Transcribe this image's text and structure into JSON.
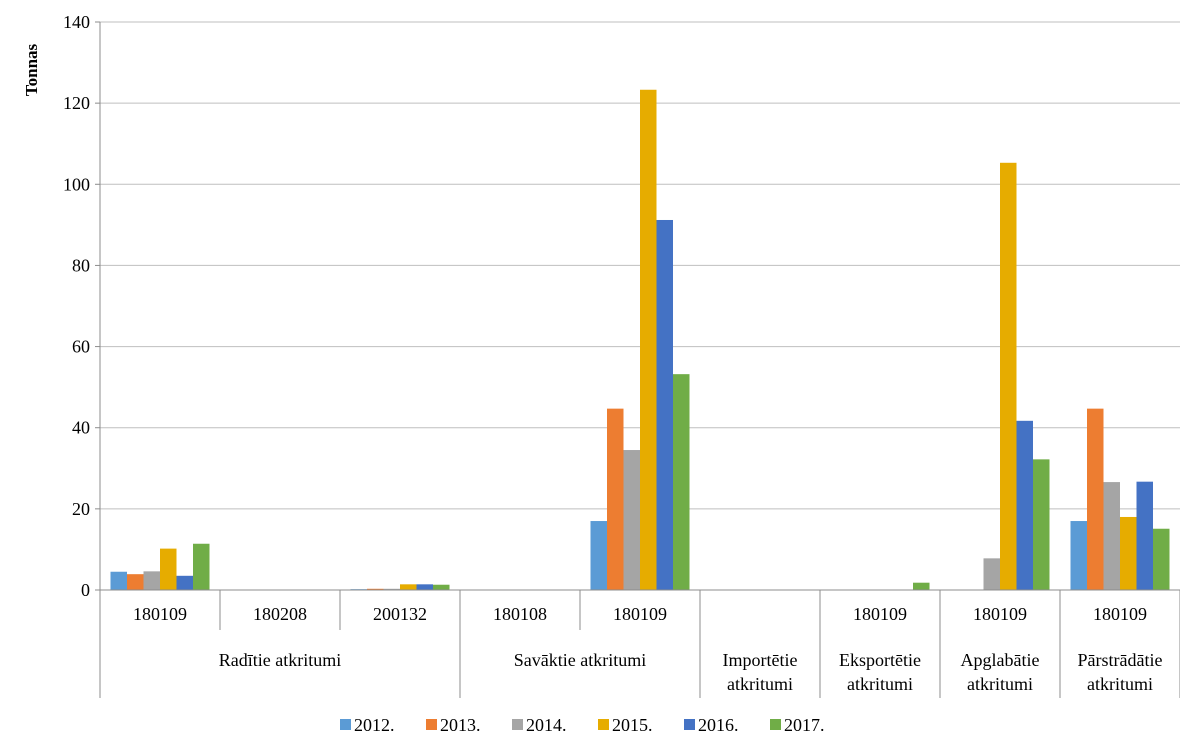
{
  "chart_data": {
    "type": "bar",
    "ylabel": "Tonnas",
    "ylim": [
      0,
      140
    ],
    "yticks": [
      0,
      20,
      40,
      60,
      80,
      100,
      120,
      140
    ],
    "grid": true,
    "legend_position": "bottom",
    "groups": [
      {
        "label": [
          "Radītie atkritumi"
        ],
        "categories": [
          "180109",
          "180208",
          "200132"
        ]
      },
      {
        "label": [
          "Savāktie atkritumi"
        ],
        "categories": [
          "180108",
          "180109"
        ]
      },
      {
        "label": [
          "Importētie",
          "atkritumi"
        ],
        "categories": [
          ""
        ]
      },
      {
        "label": [
          "Eksportētie",
          "atkritumi"
        ],
        "categories": [
          "180109"
        ]
      },
      {
        "label": [
          "Apglabātie",
          "atkritumi"
        ],
        "categories": [
          "180109"
        ]
      },
      {
        "label": [
          "Pārstrādātie",
          "atkritumi"
        ],
        "categories": [
          "180109"
        ]
      }
    ],
    "series": [
      {
        "name": "2012.",
        "color": "#5b9bd5",
        "values": [
          4.5,
          0,
          0.2,
          0,
          17,
          0,
          0,
          0,
          17
        ]
      },
      {
        "name": "2013.",
        "color": "#ed7d31",
        "values": [
          3.9,
          0,
          0.3,
          0,
          44.7,
          0,
          0,
          0,
          44.7
        ]
      },
      {
        "name": "2014.",
        "color": "#a5a5a5",
        "values": [
          4.6,
          0,
          0.3,
          0,
          34.5,
          0,
          0,
          7.8,
          26.6
        ]
      },
      {
        "name": "2015.",
        "color": "#e6ac00",
        "values": [
          10.2,
          0,
          1.4,
          0,
          123.3,
          0,
          0,
          105.3,
          18
        ]
      },
      {
        "name": "2016.",
        "color": "#4472c4",
        "values": [
          3.5,
          0,
          1.4,
          0,
          91.2,
          0,
          0,
          41.7,
          26.7
        ]
      },
      {
        "name": "2017.",
        "color": "#70ad47",
        "values": [
          11.4,
          0,
          1.3,
          0,
          53.2,
          0,
          1.8,
          32.2,
          15.1
        ]
      }
    ]
  }
}
